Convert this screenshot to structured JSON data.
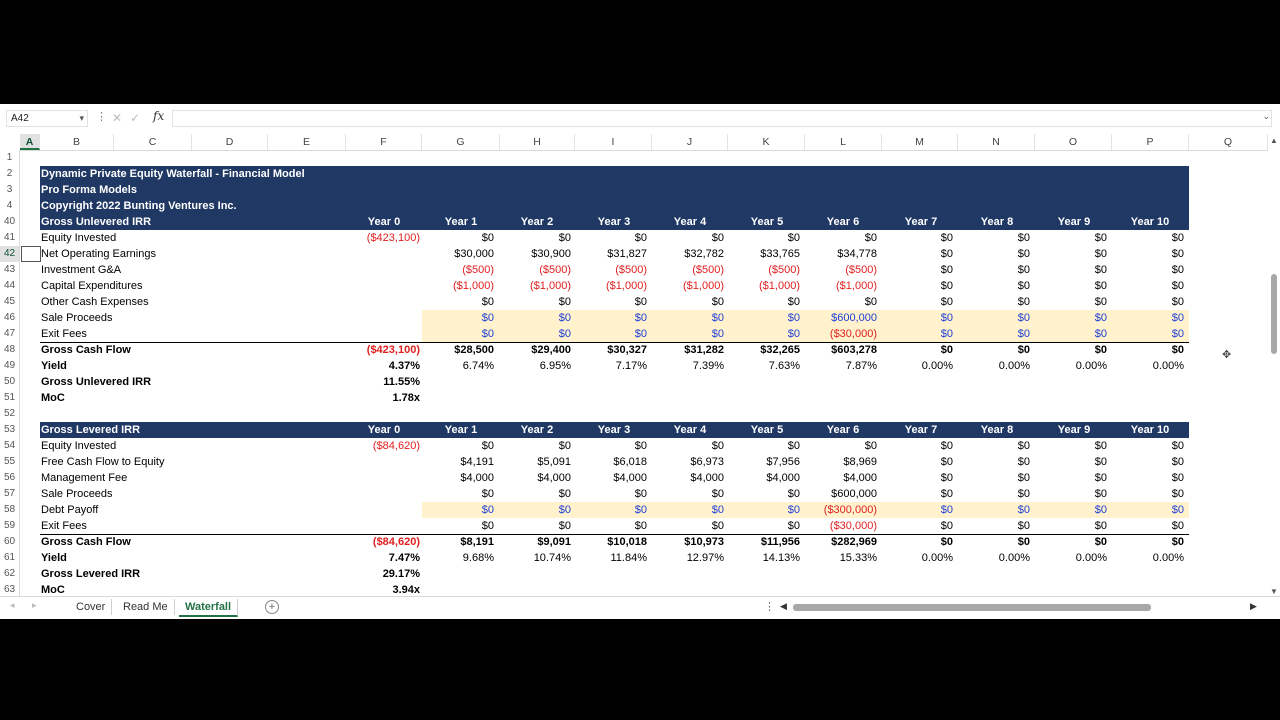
{
  "formula_bar": {
    "name_box": "A42",
    "formula": "",
    "fx": "fx"
  },
  "columns": [
    "A",
    "B",
    "C",
    "D",
    "E",
    "F",
    "G",
    "H",
    "I",
    "J",
    "K",
    "L",
    "M",
    "N",
    "O",
    "P",
    "Q"
  ],
  "header": {
    "title": "Dynamic Private Equity Waterfall - Financial Model",
    "subtitle": "Pro Forma Models",
    "copyright": "Copyright 2022 Bunting Ventures Inc."
  },
  "years": [
    "Year 0",
    "Year 1",
    "Year 2",
    "Year 3",
    "Year 4",
    "Year 5",
    "Year 6",
    "Year 7",
    "Year 8",
    "Year 9",
    "Year 10"
  ],
  "unlevered": {
    "title": "Gross Unlevered IRR",
    "rows": [
      {
        "rn": "41",
        "label": "Equity Invested",
        "vals": [
          "($423,100)",
          "$0",
          "$0",
          "$0",
          "$0",
          "$0",
          "$0",
          "$0",
          "$0",
          "$0",
          "$0"
        ]
      },
      {
        "rn": "42",
        "label": "Net Operating Earnings",
        "vals": [
          "",
          "$30,000",
          "$30,900",
          "$31,827",
          "$32,782",
          "$33,765",
          "$34,778",
          "$0",
          "$0",
          "$0",
          "$0"
        ]
      },
      {
        "rn": "43",
        "label": "Investment G&A",
        "vals": [
          "",
          "($500)",
          "($500)",
          "($500)",
          "($500)",
          "($500)",
          "($500)",
          "$0",
          "$0",
          "$0",
          "$0"
        ]
      },
      {
        "rn": "44",
        "label": "Capital Expenditures",
        "vals": [
          "",
          "($1,000)",
          "($1,000)",
          "($1,000)",
          "($1,000)",
          "($1,000)",
          "($1,000)",
          "$0",
          "$0",
          "$0",
          "$0"
        ]
      },
      {
        "rn": "45",
        "label": "Other Cash Expenses",
        "vals": [
          "",
          "$0",
          "$0",
          "$0",
          "$0",
          "$0",
          "$0",
          "$0",
          "$0",
          "$0",
          "$0"
        ]
      },
      {
        "rn": "46",
        "label": "Sale Proceeds",
        "vals": [
          "",
          "$0",
          "$0",
          "$0",
          "$0",
          "$0",
          "$600,000",
          "$0",
          "$0",
          "$0",
          "$0"
        ]
      },
      {
        "rn": "47",
        "label": "Exit Fees",
        "vals": [
          "",
          "$0",
          "$0",
          "$0",
          "$0",
          "$0",
          "($30,000)",
          "$0",
          "$0",
          "$0",
          "$0"
        ]
      }
    ],
    "cash_flow": {
      "rn": "48",
      "label": "Gross Cash Flow",
      "vals": [
        "($423,100)",
        "$28,500",
        "$29,400",
        "$30,327",
        "$31,282",
        "$32,265",
        "$603,278",
        "$0",
        "$0",
        "$0",
        "$0"
      ]
    },
    "yield": {
      "rn": "49",
      "label": "Yield",
      "vals": [
        "4.37%",
        "6.74%",
        "6.95%",
        "7.17%",
        "7.39%",
        "7.63%",
        "7.87%",
        "0.00%",
        "0.00%",
        "0.00%",
        "0.00%"
      ]
    },
    "irr": {
      "rn": "50",
      "label": "Gross Unlevered IRR",
      "val": "11.55%"
    },
    "moc": {
      "rn": "51",
      "label": "MoC",
      "val": "1.78x"
    }
  },
  "levered": {
    "title": "Gross Levered IRR",
    "rows": [
      {
        "rn": "54",
        "label": "Equity Invested",
        "vals": [
          "($84,620)",
          "$0",
          "$0",
          "$0",
          "$0",
          "$0",
          "$0",
          "$0",
          "$0",
          "$0",
          "$0"
        ]
      },
      {
        "rn": "55",
        "label": "Free Cash Flow to Equity",
        "vals": [
          "",
          "$4,191",
          "$5,091",
          "$6,018",
          "$6,973",
          "$7,956",
          "$8,969",
          "$0",
          "$0",
          "$0",
          "$0"
        ]
      },
      {
        "rn": "56",
        "label": "Management Fee",
        "vals": [
          "",
          "$4,000",
          "$4,000",
          "$4,000",
          "$4,000",
          "$4,000",
          "$4,000",
          "$0",
          "$0",
          "$0",
          "$0"
        ]
      },
      {
        "rn": "57",
        "label": "Sale Proceeds",
        "vals": [
          "",
          "$0",
          "$0",
          "$0",
          "$0",
          "$0",
          "$600,000",
          "$0",
          "$0",
          "$0",
          "$0"
        ]
      },
      {
        "rn": "58",
        "label": "Debt Payoff",
        "vals": [
          "",
          "$0",
          "$0",
          "$0",
          "$0",
          "$0",
          "($300,000)",
          "$0",
          "$0",
          "$0",
          "$0"
        ]
      },
      {
        "rn": "59",
        "label": "Exit Fees",
        "vals": [
          "",
          "$0",
          "$0",
          "$0",
          "$0",
          "$0",
          "($30,000)",
          "$0",
          "$0",
          "$0",
          "$0"
        ]
      }
    ],
    "cash_flow": {
      "rn": "60",
      "label": "Gross Cash Flow",
      "vals": [
        "($84,620)",
        "$8,191",
        "$9,091",
        "$10,018",
        "$10,973",
        "$11,956",
        "$282,969",
        "$0",
        "$0",
        "$0",
        "$0"
      ]
    },
    "yield": {
      "rn": "61",
      "label": "Yield",
      "vals": [
        "7.47%",
        "9.68%",
        "10.74%",
        "11.84%",
        "12.97%",
        "14.13%",
        "15.33%",
        "0.00%",
        "0.00%",
        "0.00%",
        "0.00%"
      ]
    },
    "irr": {
      "rn": "62",
      "label": "Gross Levered IRR",
      "val": "29.17%"
    },
    "moc": {
      "rn": "63",
      "label": "MoC",
      "val": "3.94x"
    }
  },
  "sheet_tabs": [
    "Cover",
    "Read Me",
    "Waterfall"
  ],
  "active_tab": "Waterfall",
  "colors": {
    "navy": "#1f3864",
    "cream": "#fff2cc",
    "negative": "#e02020",
    "input_blue": "#1f3fd6",
    "excel_green": "#217346"
  }
}
